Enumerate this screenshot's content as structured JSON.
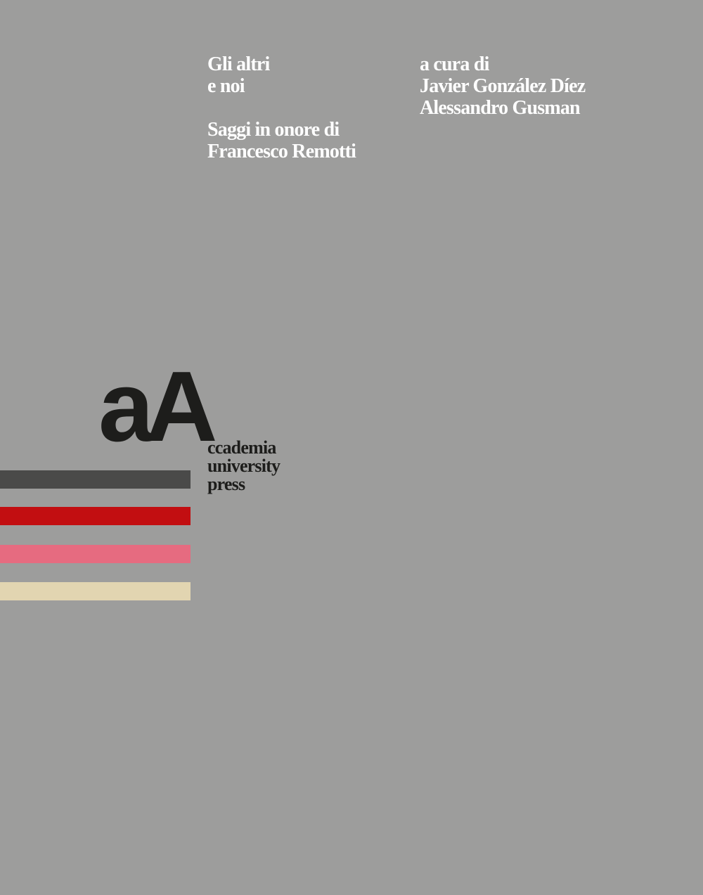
{
  "title": {
    "line1": "Gli altri",
    "line2": "e noi"
  },
  "subtitle": {
    "line1": "Saggi in onore di",
    "line2": "Francesco Remotti"
  },
  "editors": {
    "label": "a cura di",
    "names": [
      "Javier González Díez",
      "Alessandro Gusman"
    ]
  },
  "publisher": {
    "logo_mark": "aA",
    "lines": [
      "ccademia",
      "university",
      "press"
    ]
  },
  "colors": {
    "background": "#9d9d9c",
    "bars": [
      "#4a4a49",
      "#c20e11",
      "#e66b80",
      "#e2d5b1"
    ]
  }
}
